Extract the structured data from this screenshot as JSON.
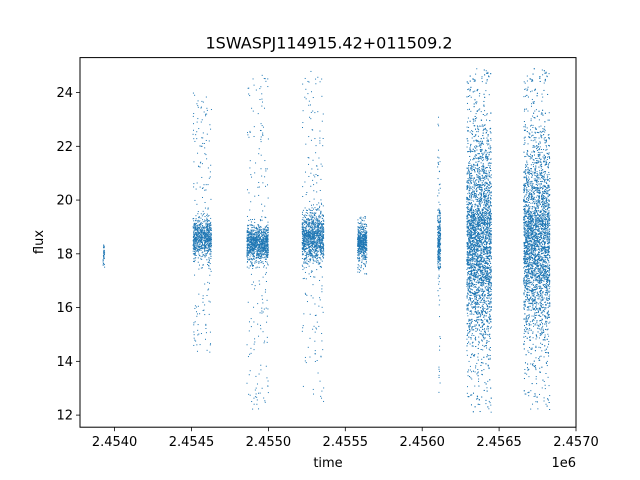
{
  "chart_data": {
    "type": "scatter",
    "title": "1SWASPJ114915.42+011509.2",
    "xlabel": "time",
    "ylabel": "flux",
    "x_offset_label": "1e6",
    "xlim": [
      2453775,
      2457000
    ],
    "ylim": [
      11.55,
      25.3
    ],
    "x_ticks": [
      2454000,
      2454500,
      2455000,
      2455500,
      2456000,
      2456500,
      2457000
    ],
    "x_tick_labels": [
      "2.4540",
      "2.4545",
      "2.4550",
      "2.4555",
      "2.4560",
      "2.4565",
      "2.4570"
    ],
    "y_ticks": [
      12,
      14,
      16,
      18,
      20,
      22,
      24
    ],
    "y_tick_labels": [
      "12",
      "14",
      "16",
      "18",
      "20",
      "22",
      "24"
    ],
    "grid": false,
    "marker_color": "#1f77b4",
    "clusters": [
      {
        "x_start": 2453925,
        "x_end": 2453935,
        "center": 18.0,
        "core_spread": 0.3,
        "tail_low": 17.5,
        "tail_high": 18.4,
        "count": 40
      },
      {
        "x_start": 2454510,
        "x_end": 2454630,
        "center": 18.6,
        "core_spread": 0.35,
        "tail_low": 14.3,
        "tail_high": 24.0,
        "count": 900
      },
      {
        "x_start": 2454860,
        "x_end": 2455000,
        "center": 18.4,
        "core_spread": 0.35,
        "tail_low": 12.2,
        "tail_high": 24.7,
        "count": 1100
      },
      {
        "x_start": 2455220,
        "x_end": 2455360,
        "center": 18.6,
        "core_spread": 0.45,
        "tail_low": 12.5,
        "tail_high": 24.8,
        "count": 1200
      },
      {
        "x_start": 2455580,
        "x_end": 2455640,
        "center": 18.4,
        "core_spread": 0.3,
        "tail_low": 17.2,
        "tail_high": 19.4,
        "count": 500
      },
      {
        "x_start": 2456100,
        "x_end": 2456120,
        "center": 18.5,
        "core_spread": 0.6,
        "tail_low": 12.4,
        "tail_high": 23.5,
        "count": 300
      },
      {
        "x_start": 2456290,
        "x_end": 2456450,
        "center": 18.5,
        "core_spread": 1.8,
        "tail_low": 12.1,
        "tail_high": 24.9,
        "count": 4000
      },
      {
        "x_start": 2456660,
        "x_end": 2456830,
        "center": 18.5,
        "core_spread": 1.7,
        "tail_low": 12.2,
        "tail_high": 24.9,
        "count": 3800
      }
    ]
  }
}
